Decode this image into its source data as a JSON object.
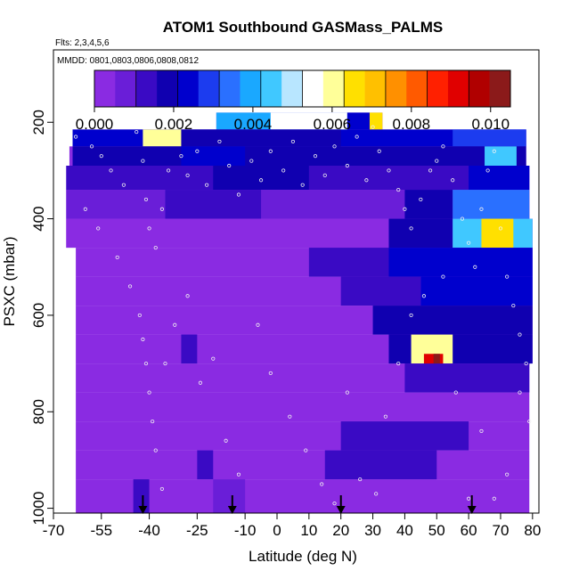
{
  "chart_data": {
    "type": "heatmap",
    "title": "ATOM1 Southbound GASMass_PALMS",
    "flights_note": "Flts: 2,3,4,5,6",
    "dates_note": "MMDD: 0801,0803,0806,0808,0812",
    "xlabel": "Latitude (deg N)",
    "ylabel": "PSXC (mbar)",
    "xlim": [
      -70,
      82
    ],
    "ylim": [
      1010,
      50
    ],
    "xticks": [
      -70,
      -55,
      -40,
      -25,
      -10,
      0,
      10,
      20,
      30,
      40,
      50,
      60,
      70,
      80
    ],
    "xtick_labels": [
      "-70",
      "-55",
      "-40",
      "-25",
      "-10",
      "0",
      "10",
      "20",
      "30",
      "40",
      "50",
      "60",
      "70",
      "80"
    ],
    "yticks": [
      200,
      400,
      600,
      800,
      1000
    ],
    "ytick_labels": [
      "200",
      "400",
      "600",
      "800",
      "1000"
    ],
    "colorbar": {
      "range": [
        0,
        0.0105
      ],
      "ticks": [
        0,
        0.002,
        0.004,
        0.006,
        0.008,
        0.01
      ],
      "tick_labels": [
        "0.000",
        "0.002",
        "0.004",
        "0.006",
        "0.008",
        "0.010"
      ],
      "colors": [
        "#8a2be2",
        "#6a1ed8",
        "#3a0ac4",
        "#1000b0",
        "#0000cd",
        "#1c3cef",
        "#2a70ff",
        "#1aa8ff",
        "#40c8ff",
        "#b8e6ff",
        "#ffffff",
        "#ffff99",
        "#ffe000",
        "#ffc000",
        "#ff9000",
        "#ff5a00",
        "#ff2000",
        "#e00000",
        "#b00000",
        "#8b1a1a"
      ]
    },
    "arrows_lat": [
      -42,
      -14,
      20,
      61
    ],
    "pressure_bins": [
      {
        "top": 180,
        "bottom": 215,
        "from": -19,
        "to": 33
      },
      {
        "top": 215,
        "bottom": 250,
        "from": -64,
        "to": 78
      },
      {
        "top": 250,
        "bottom": 290,
        "from": -65,
        "to": 78
      },
      {
        "top": 290,
        "bottom": 340,
        "from": -66,
        "to": 79
      },
      {
        "top": 340,
        "bottom": 400,
        "from": -66,
        "to": 79
      },
      {
        "top": 400,
        "bottom": 460,
        "from": -66,
        "to": 80
      },
      {
        "top": 460,
        "bottom": 520,
        "from": -63,
        "to": 80
      },
      {
        "top": 520,
        "bottom": 580,
        "from": -63,
        "to": 80
      },
      {
        "top": 580,
        "bottom": 640,
        "from": -63,
        "to": 80
      },
      {
        "top": 640,
        "bottom": 700,
        "from": -63,
        "to": 80
      },
      {
        "top": 700,
        "bottom": 760,
        "from": -63,
        "to": 79
      },
      {
        "top": 760,
        "bottom": 820,
        "from": -63,
        "to": 79
      },
      {
        "top": 820,
        "bottom": 880,
        "from": -63,
        "to": 79
      },
      {
        "top": 880,
        "bottom": 940,
        "from": -63,
        "to": 79
      },
      {
        "top": 940,
        "bottom": 1010,
        "from": -63,
        "to": 79
      }
    ],
    "background_value": 0.0004,
    "features": [
      {
        "lat": [
          -19,
          22
        ],
        "p": [
          180,
          215
        ],
        "v": 0.0042
      },
      {
        "lat": [
          -2,
          22
        ],
        "p": [
          180,
          215
        ],
        "v": 0.0055
      },
      {
        "lat": [
          22,
          29
        ],
        "p": [
          180,
          215
        ],
        "v": 0.0022
      },
      {
        "lat": [
          29,
          33
        ],
        "p": [
          180,
          215
        ],
        "v": 0.0065
      },
      {
        "lat": [
          -64,
          78
        ],
        "p": [
          215,
          250
        ],
        "v": 0.0022
      },
      {
        "lat": [
          -30,
          20
        ],
        "p": [
          215,
          250
        ],
        "v": 0.0016
      },
      {
        "lat": [
          -42,
          -30
        ],
        "p": [
          215,
          250
        ],
        "v": 0.0062
      },
      {
        "lat": [
          55,
          78
        ],
        "p": [
          215,
          250
        ],
        "v": 0.003
      },
      {
        "lat": [
          -64,
          78
        ],
        "p": [
          250,
          290
        ],
        "v": 0.0016
      },
      {
        "lat": [
          -30,
          -10
        ],
        "p": [
          250,
          290
        ],
        "v": 0.0024
      },
      {
        "lat": [
          65,
          75
        ],
        "p": [
          250,
          290
        ],
        "v": 0.0046
      },
      {
        "lat": [
          -66,
          79
        ],
        "p": [
          290,
          340
        ],
        "v": 0.0012
      },
      {
        "lat": [
          -20,
          10
        ],
        "p": [
          290,
          340
        ],
        "v": 0.0018
      },
      {
        "lat": [
          60,
          79
        ],
        "p": [
          290,
          340
        ],
        "v": 0.0026
      },
      {
        "lat": [
          -66,
          79
        ],
        "p": [
          340,
          400
        ],
        "v": 0.0006
      },
      {
        "lat": [
          -35,
          -5
        ],
        "p": [
          340,
          400
        ],
        "v": 0.0014
      },
      {
        "lat": [
          40,
          55
        ],
        "p": [
          340,
          400
        ],
        "v": 0.0018
      },
      {
        "lat": [
          55,
          79
        ],
        "p": [
          340,
          400
        ],
        "v": 0.0034
      },
      {
        "lat": [
          -66,
          80
        ],
        "p": [
          400,
          460
        ],
        "v": 0.0005
      },
      {
        "lat": [
          35,
          55
        ],
        "p": [
          400,
          460
        ],
        "v": 0.0016
      },
      {
        "lat": [
          55,
          80
        ],
        "p": [
          400,
          460
        ],
        "v": 0.0045
      },
      {
        "lat": [
          64,
          74
        ],
        "p": [
          400,
          460
        ],
        "v": 0.0068
      },
      {
        "lat": [
          10,
          35
        ],
        "p": [
          460,
          520
        ],
        "v": 0.0012
      },
      {
        "lat": [
          35,
          80
        ],
        "p": [
          460,
          520
        ],
        "v": 0.0022
      },
      {
        "lat": [
          20,
          45
        ],
        "p": [
          520,
          580
        ],
        "v": 0.0014
      },
      {
        "lat": [
          45,
          80
        ],
        "p": [
          520,
          580
        ],
        "v": 0.0025
      },
      {
        "lat": [
          30,
          80
        ],
        "p": [
          580,
          640
        ],
        "v": 0.0018
      },
      {
        "lat": [
          -30,
          -25
        ],
        "p": [
          640,
          700
        ],
        "v": 0.0012
      },
      {
        "lat": [
          35,
          80
        ],
        "p": [
          640,
          700
        ],
        "v": 0.0018
      },
      {
        "lat": [
          42,
          55
        ],
        "p": [
          640,
          700
        ],
        "v": 0.0058
      },
      {
        "lat": [
          46,
          52
        ],
        "p": [
          680,
          720
        ],
        "v": 0.0092
      },
      {
        "lat": [
          49,
          51
        ],
        "p": [
          680,
          720
        ],
        "v": 0.0104
      },
      {
        "lat": [
          40,
          79
        ],
        "p": [
          700,
          760
        ],
        "v": 0.0012
      },
      {
        "lat": [
          20,
          60
        ],
        "p": [
          820,
          880
        ],
        "v": 0.0014
      },
      {
        "lat": [
          15,
          50
        ],
        "p": [
          880,
          940
        ],
        "v": 0.0014
      },
      {
        "lat": [
          -25,
          -20
        ],
        "p": [
          880,
          940
        ],
        "v": 0.0012
      },
      {
        "lat": [
          -45,
          -40
        ],
        "p": [
          940,
          1010
        ],
        "v": 0.0014
      },
      {
        "lat": [
          -20,
          -10
        ],
        "p": [
          940,
          1010
        ],
        "v": 0.001
      }
    ],
    "samples": [
      [
        -63,
        230
      ],
      [
        -58,
        250
      ],
      [
        -55,
        270
      ],
      [
        -52,
        300
      ],
      [
        -48,
        330
      ],
      [
        -44,
        220
      ],
      [
        -42,
        280
      ],
      [
        -41,
        360
      ],
      [
        -40,
        420
      ],
      [
        -38,
        460
      ],
      [
        -36,
        380
      ],
      [
        -34,
        300
      ],
      [
        -30,
        270
      ],
      [
        -28,
        310
      ],
      [
        -25,
        260
      ],
      [
        -22,
        330
      ],
      [
        -18,
        240
      ],
      [
        -15,
        290
      ],
      [
        -12,
        350
      ],
      [
        -8,
        280
      ],
      [
        -5,
        320
      ],
      [
        -2,
        260
      ],
      [
        2,
        300
      ],
      [
        5,
        240
      ],
      [
        8,
        330
      ],
      [
        12,
        270
      ],
      [
        15,
        310
      ],
      [
        18,
        250
      ],
      [
        22,
        290
      ],
      [
        25,
        230
      ],
      [
        28,
        320
      ],
      [
        30,
        210
      ],
      [
        32,
        260
      ],
      [
        35,
        300
      ],
      [
        38,
        340
      ],
      [
        40,
        380
      ],
      [
        42,
        420
      ],
      [
        45,
        360
      ],
      [
        48,
        300
      ],
      [
        50,
        280
      ],
      [
        52,
        250
      ],
      [
        55,
        320
      ],
      [
        58,
        400
      ],
      [
        60,
        450
      ],
      [
        62,
        500
      ],
      [
        64,
        380
      ],
      [
        66,
        300
      ],
      [
        68,
        260
      ],
      [
        70,
        420
      ],
      [
        72,
        520
      ],
      [
        74,
        580
      ],
      [
        76,
        640
      ],
      [
        78,
        700
      ],
      [
        -60,
        380
      ],
      [
        -56,
        420
      ],
      [
        -50,
        480
      ],
      [
        -46,
        540
      ],
      [
        -43,
        600
      ],
      [
        -42,
        650
      ],
      [
        -41,
        700
      ],
      [
        -40,
        760
      ],
      [
        -39,
        820
      ],
      [
        -38,
        880
      ],
      [
        -36,
        960
      ],
      [
        -35,
        700
      ],
      [
        -32,
        620
      ],
      [
        -28,
        560
      ],
      [
        -24,
        740
      ],
      [
        -20,
        690
      ],
      [
        -16,
        860
      ],
      [
        -12,
        930
      ],
      [
        -6,
        620
      ],
      [
        -2,
        720
      ],
      [
        4,
        810
      ],
      [
        9,
        880
      ],
      [
        14,
        950
      ],
      [
        18,
        990
      ],
      [
        22,
        760
      ],
      [
        26,
        940
      ],
      [
        31,
        970
      ],
      [
        34,
        810
      ],
      [
        38,
        700
      ],
      [
        42,
        600
      ],
      [
        46,
        560
      ],
      [
        52,
        520
      ],
      [
        56,
        760
      ],
      [
        60,
        980
      ],
      [
        64,
        840
      ],
      [
        68,
        980
      ],
      [
        72,
        930
      ],
      [
        76,
        760
      ],
      [
        79,
        820
      ]
    ]
  }
}
